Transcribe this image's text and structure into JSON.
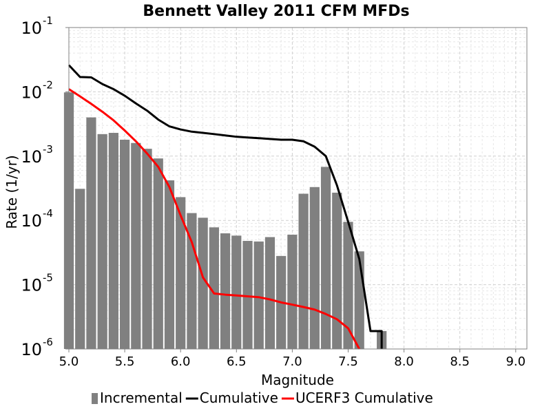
{
  "chart_data": {
    "type": "bar",
    "title": "Bennett Valley 2011 CFM MFDs",
    "xlabel": "Magnitude",
    "ylabel": "Rate (1/yr)",
    "x_scale": "linear",
    "y_scale": "log",
    "xlim": [
      5.0,
      9.1
    ],
    "ylim": [
      1e-06,
      0.1
    ],
    "grid": true,
    "legend_position": "bottom",
    "x_ticks": [
      "5.0",
      "5.5",
      "6.0",
      "6.5",
      "7.0",
      "7.5",
      "8.0",
      "8.5",
      "9.0"
    ],
    "y_ticks": [
      {
        "base": "10",
        "exp": "-6"
      },
      {
        "base": "10",
        "exp": "-5"
      },
      {
        "base": "10",
        "exp": "-4"
      },
      {
        "base": "10",
        "exp": "-3"
      },
      {
        "base": "10",
        "exp": "-2"
      },
      {
        "base": "10",
        "exp": "-1"
      }
    ],
    "series": [
      {
        "name": "Incremental",
        "kind": "bar",
        "color": "#808080",
        "x": [
          5.0,
          5.1,
          5.2,
          5.3,
          5.4,
          5.5,
          5.6,
          5.7,
          5.8,
          5.9,
          6.0,
          6.1,
          6.2,
          6.3,
          6.4,
          6.5,
          6.6,
          6.7,
          6.8,
          6.9,
          7.0,
          7.1,
          7.2,
          7.3,
          7.4,
          7.5,
          7.6,
          7.7,
          7.8
        ],
        "values": [
          0.0098,
          0.00031,
          0.004,
          0.0022,
          0.0023,
          0.0018,
          0.0016,
          0.0013,
          0.00092,
          0.00042,
          0.00023,
          0.00013,
          0.00011,
          7.8e-05,
          6.3e-05,
          5.8e-05,
          4.8e-05,
          4.7e-05,
          5.5e-05,
          2.8e-05,
          6e-05,
          0.00026,
          0.00033,
          0.00068,
          0.00027,
          9.5e-05,
          3.3e-05,
          1e-06,
          1.9e-06
        ]
      },
      {
        "name": "Cumulative",
        "kind": "line",
        "color": "#000000",
        "x": [
          5.0,
          5.1,
          5.2,
          5.3,
          5.4,
          5.5,
          5.6,
          5.7,
          5.8,
          5.9,
          6.0,
          6.1,
          6.2,
          6.3,
          6.4,
          6.5,
          6.6,
          6.7,
          6.8,
          6.9,
          7.0,
          7.1,
          7.2,
          7.3,
          7.4,
          7.5,
          7.6,
          7.7,
          7.8,
          7.8
        ],
        "values": [
          0.026,
          0.017,
          0.0168,
          0.0132,
          0.011,
          0.0087,
          0.0066,
          0.0051,
          0.0037,
          0.0029,
          0.0026,
          0.0024,
          0.0023,
          0.0022,
          0.0021,
          0.002,
          0.00195,
          0.0019,
          0.00185,
          0.0018,
          0.0018,
          0.0017,
          0.0014,
          0.001,
          0.00035,
          9.5e-05,
          2.5e-05,
          1.9e-06,
          1.9e-06,
          1e-06
        ]
      },
      {
        "name": "UCERF3 Cumulative",
        "kind": "line",
        "color": "#ff0000",
        "x": [
          5.0,
          5.1,
          5.2,
          5.3,
          5.4,
          5.5,
          5.6,
          5.7,
          5.8,
          5.9,
          6.0,
          6.1,
          6.2,
          6.3,
          6.4,
          6.5,
          6.6,
          6.7,
          6.8,
          6.9,
          7.0,
          7.1,
          7.2,
          7.3,
          7.4,
          7.5,
          7.6
        ],
        "values": [
          0.011,
          0.0085,
          0.0065,
          0.0049,
          0.0036,
          0.0025,
          0.0017,
          0.0011,
          0.00068,
          0.00033,
          0.00012,
          4.6e-05,
          1.3e-05,
          7.3e-06,
          7e-06,
          6.8e-06,
          6.6e-06,
          6.4e-06,
          5.9e-06,
          5.3e-06,
          4.9e-06,
          4.5e-06,
          4.1e-06,
          3.5e-06,
          2.9e-06,
          2.1e-06,
          1e-06
        ]
      }
    ]
  }
}
